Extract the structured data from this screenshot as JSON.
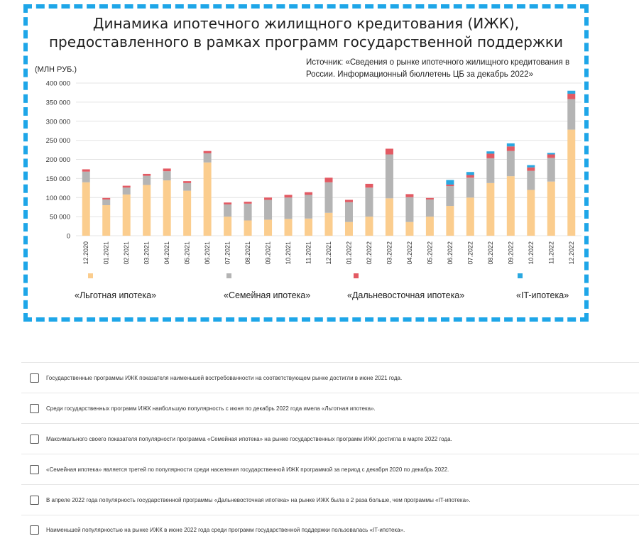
{
  "chart_data": {
    "type": "bar",
    "stacked": true,
    "title_line1": "Динамика ипотечного жилищного кредитования (ИЖК),",
    "title_line2": "предоставленного в рамках программ государственной поддержки",
    "ylabel": "(МЛН РУБ.)",
    "source": "Источник: «Сведения о рынке ипотечного жилищного кредитования в России. Информационный бюллетень ЦБ за декабрь 2022»",
    "ylim": [
      0,
      400000
    ],
    "yticks": [
      "400 000",
      "350 000",
      "300 000",
      "250 000",
      "200 000",
      "150 000",
      "100 000",
      "50 000",
      "0"
    ],
    "legend_position": "bottom",
    "grid": true,
    "categories": [
      "12.2020",
      "01.2021",
      "02.2021",
      "03.2021",
      "04.2021",
      "05.2021",
      "06.2021",
      "07.2021",
      "08.2021",
      "09.2021",
      "10.2021",
      "11.2021",
      "12.2021",
      "01.2022",
      "02.2022",
      "03.2022",
      "04.2022",
      "05.2022",
      "06.2022",
      "07.2022",
      "08.2022",
      "09.2022",
      "10.2022",
      "11.2022",
      "12.2022"
    ],
    "series": [
      {
        "name": "«Льготная ипотека»",
        "color": "#fbcd8e",
        "values": [
          140000,
          80000,
          108000,
          133000,
          145000,
          118000,
          192000,
          50000,
          40000,
          42000,
          44000,
          45000,
          60000,
          36000,
          50000,
          98000,
          36000,
          50000,
          78000,
          100000,
          138000,
          156000,
          120000,
          142000,
          278000
        ]
      },
      {
        "name": "«Семейная ипотека»",
        "color": "#b4b4b4",
        "values": [
          28000,
          15000,
          18000,
          24000,
          24000,
          20000,
          24000,
          32000,
          44000,
          52000,
          56000,
          62000,
          80000,
          52000,
          76000,
          115000,
          65000,
          45000,
          52000,
          52000,
          65000,
          66000,
          50000,
          62000,
          80000
        ]
      },
      {
        "name": "«Дальневосточная ипотека»",
        "color": "#e35a63",
        "values": [
          6000,
          4000,
          5000,
          5000,
          7000,
          5000,
          6000,
          5000,
          5000,
          6000,
          7000,
          7000,
          12000,
          6000,
          10000,
          15000,
          8000,
          4000,
          4000,
          7000,
          12000,
          12000,
          9000,
          9000,
          14000
        ]
      },
      {
        "name": "«IT-ипотека»",
        "color": "#2aa8e0",
        "values": [
          0,
          0,
          0,
          0,
          0,
          0,
          0,
          0,
          0,
          0,
          0,
          0,
          0,
          0,
          0,
          0,
          0,
          0,
          12000,
          8000,
          6000,
          8000,
          6000,
          4000,
          8000
        ]
      }
    ]
  },
  "questions": [
    "Государственные программы ИЖК показателя наименьшей востребованности на соответствующем рынке достигли в июне 2021 года.",
    "Среди государственных программ ИЖК наибольшую популярность с июня по декабрь 2022 года имела «Льготная ипотека».",
    "Максимального своего показателя популярности программа «Семейная ипотека» на рынке государственных программ ИЖК достигла в марте 2022 года.",
    "«Семейная ипотека» является третей по популярности среди населения государственной ИЖК программой за период с декабря 2020 по декабрь 2022.",
    "В апреле 2022 года популярность государственной программы «Дальневосточная ипотека» на рынке ИЖК была в 2 раза больше, чем программы «IT-ипотека».",
    "Наименьшей популярностью на рынке ИЖК в июне 2022 года среди программ государственной поддержки пользовалась «IT-ипотека»."
  ]
}
